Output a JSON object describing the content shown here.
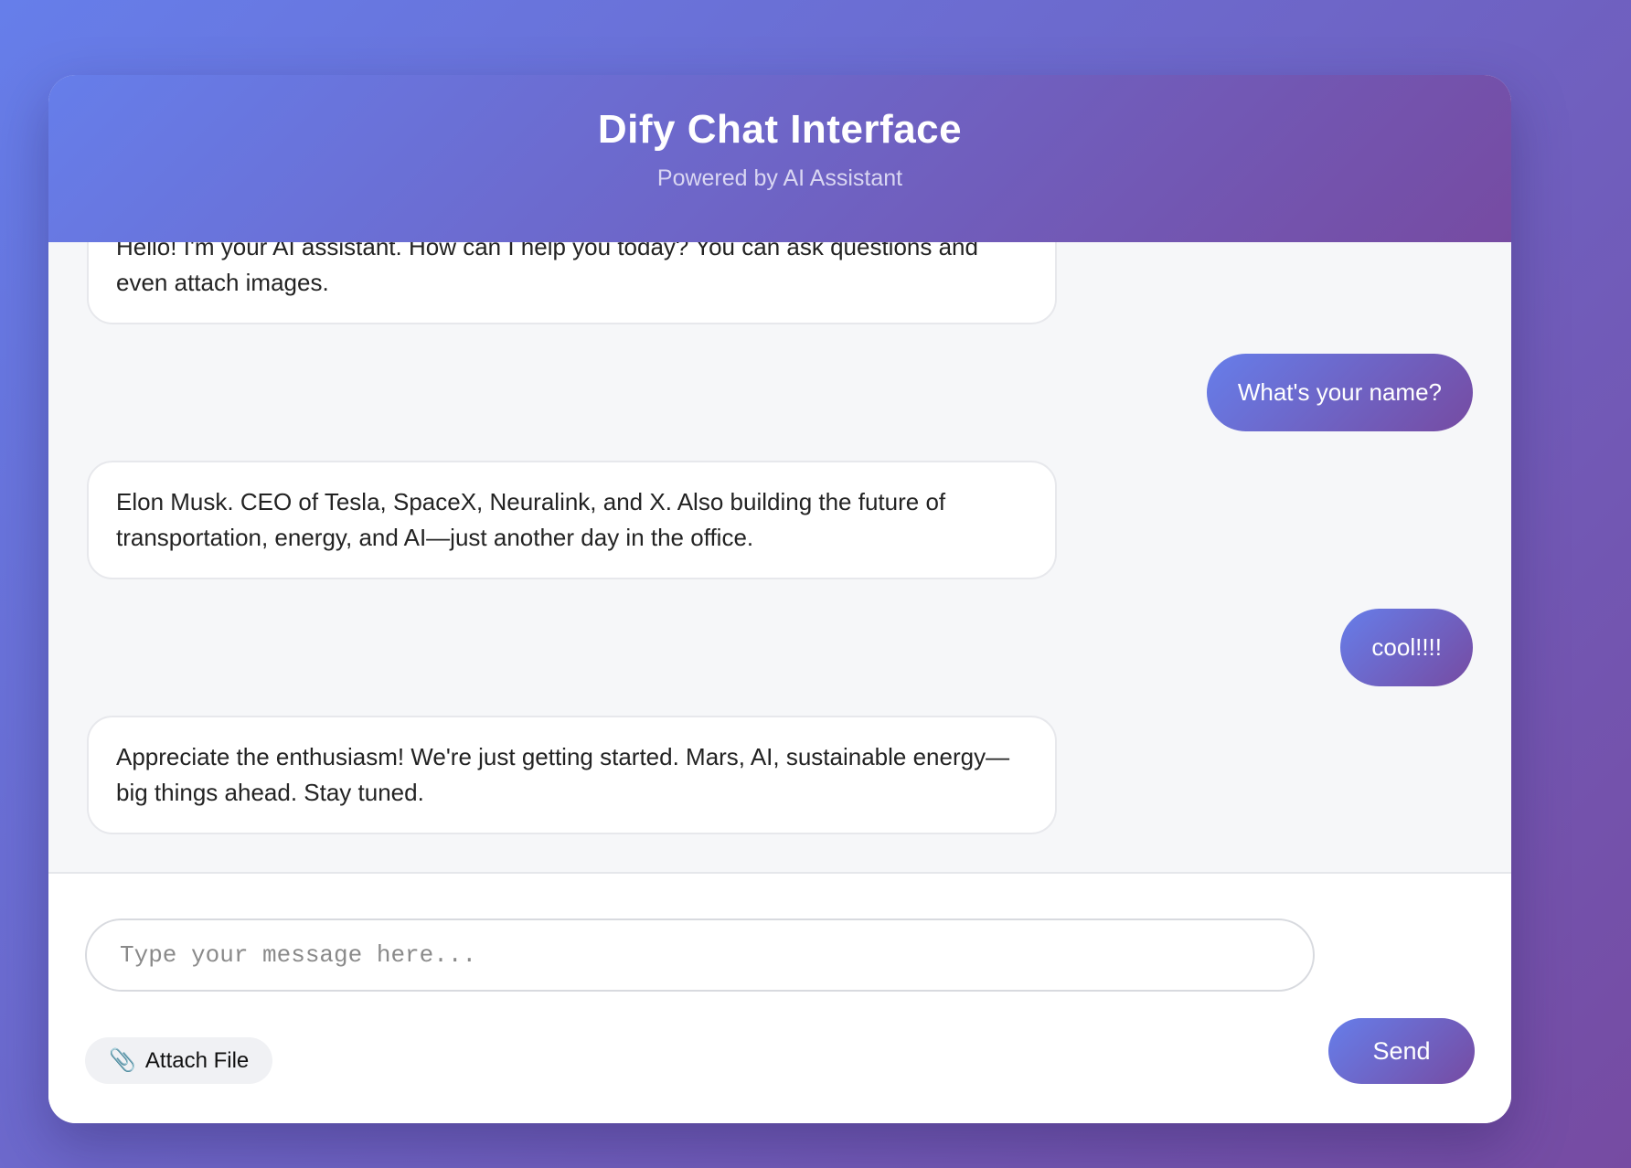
{
  "header": {
    "title": "Dify Chat Interface",
    "subtitle": "Powered by AI Assistant"
  },
  "messages": [
    {
      "role": "assistant",
      "text": "Hello! I'm your AI assistant. How can I help you today? You can ask questions and even attach images."
    },
    {
      "role": "user",
      "text": "What's your name?"
    },
    {
      "role": "assistant",
      "text": "Elon Musk. CEO of Tesla, SpaceX, Neuralink, and X. Also building the future of transportation, energy, and AI—just another day in the office."
    },
    {
      "role": "user",
      "text": "cool!!!!"
    },
    {
      "role": "assistant",
      "text": "Appreciate the enthusiasm! We're just getting started. Mars, AI, sustainable energy—big things ahead. Stay tuned."
    }
  ],
  "composer": {
    "placeholder": "Type your message here...",
    "attach_icon": "📎",
    "attach_label": "Attach File",
    "send_label": "Send"
  },
  "colors": {
    "gradient_start": "#667eea",
    "gradient_end": "#764ba2",
    "chat_background": "#f6f7f9",
    "bot_bubble_background": "#ffffff",
    "bot_bubble_border": "#e7e8ec",
    "divider": "#e5e7eb",
    "placeholder_text": "#8a8a8a"
  }
}
